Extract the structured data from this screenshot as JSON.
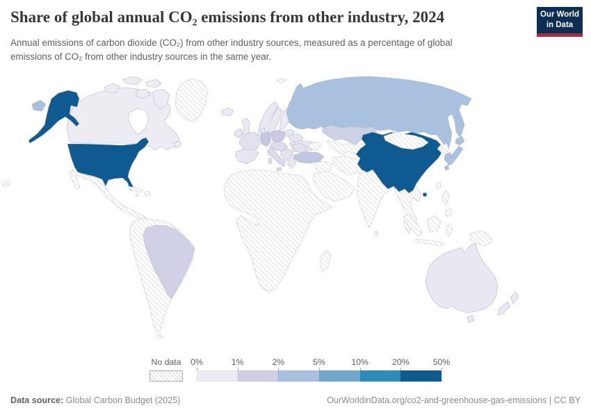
{
  "header": {
    "title": "Share of global annual CO₂ emissions from other industry, 2024",
    "subtitle_line1": "Annual emissions of carbon dioxide (CO₂) from other industry sources, measured as a percentage of global",
    "subtitle_line2": "emissions of CO₂ from other industry sources in the same year.",
    "logo": {
      "line1": "Our World",
      "line2": "in Data",
      "bg": "#0d2e52",
      "accent": "#a52c43"
    }
  },
  "legend": {
    "no_data_label": "No data",
    "ticks": [
      "0%",
      "1%",
      "2%",
      "5%",
      "10%",
      "20%",
      "50%"
    ],
    "bins": [
      "#eceaf3",
      "#cfcee3",
      "#a9c0de",
      "#72a7cd",
      "#2e8bbd",
      "#0e5a91"
    ]
  },
  "footer": {
    "source_label": "Data source:",
    "source_value": " Global Carbon Budget (2025)",
    "note_right": "OurWorldinData.org/co2-and-greenhouse-gas-emissions | CC BY"
  },
  "chart_data": {
    "type": "choropleth-map",
    "title": "Share of global annual CO₂ emissions from other industry, 2024",
    "unit": "%",
    "legend_bins": [
      {
        "range": "0–1%",
        "color": "#eceaf3"
      },
      {
        "range": "1–2%",
        "color": "#cfcee3"
      },
      {
        "range": "2–5%",
        "color": "#a9c0de"
      },
      {
        "range": "5–10%",
        "color": "#72a7cd"
      },
      {
        "range": "10–20%",
        "color": "#2e8bbd"
      },
      {
        "range": "20–50%",
        "color": "#0e5a91"
      }
    ],
    "countries": [
      {
        "name": "United States",
        "bin": "20–50%"
      },
      {
        "name": "China",
        "bin": "20–50%"
      },
      {
        "name": "Russia",
        "bin": "2–5%"
      },
      {
        "name": "Japan",
        "bin": "2–5%"
      },
      {
        "name": "South Korea",
        "bin": "2–5%"
      },
      {
        "name": "Turkey",
        "bin": "1–2%"
      },
      {
        "name": "Kazakhstan",
        "bin": "1–2%"
      },
      {
        "name": "Germany",
        "bin": "1–2%"
      },
      {
        "name": "Poland",
        "bin": "1–2%"
      },
      {
        "name": "Brazil",
        "bin": "1–2%"
      },
      {
        "name": "Canada",
        "bin": "0–1%"
      },
      {
        "name": "Australia",
        "bin": "0–1%"
      },
      {
        "name": "New Zealand",
        "bin": "0–1%"
      },
      {
        "name": "Iceland",
        "bin": "0–1%"
      },
      {
        "name": "Most of Europe (UK, France, Spain, Italy, Nordics, Ukraine, Balkans)",
        "bin": "0–1%"
      },
      {
        "name": "Africa, Middle East, India, Southeast Asia, Mongolia, Mexico, Central America, South America except Brazil, Greenland",
        "bin": "No data"
      }
    ]
  },
  "map": {
    "no_data_fill": "hatch",
    "countries": {
      "united-states": "#0e5a91",
      "canada": "#eeecf3",
      "chukotka-russia": "#a9c0de",
      "greenland": "no-data",
      "hawaii": "no-data",
      "mexico-central-america": "no-data",
      "caribbean": "no-data",
      "south-america": "no-data",
      "brazil": "#d0d1e6",
      "iceland": "#eceaf3",
      "united-kingdom": "#eae8f2",
      "ireland": "#e8e6f1",
      "norway": "#eae8f2",
      "sweden": "#e9e7f1",
      "finland": "#eceaf3",
      "denmark": "#e8e6f1",
      "baltics": "#e8e6f1",
      "belarus": "#e8e6f1",
      "ukraine": "#e7e5f0",
      "poland": "#c9c9e1",
      "germany": "#c7c7e0",
      "france": "#e3e1ed",
      "spain": "#e7e5f0",
      "central-europe": "#dddbe9",
      "italy": "#dcdae8",
      "balkans": "#e4e2ee",
      "romania-bulgaria": "#e2e0ec",
      "greece": "#e9e7f1",
      "turkey": "#bfc8e2",
      "russia": "#a9c0de",
      "novaya-zemlya-russia": "#a9c0de",
      "sakhalin-russia": "#a9c0de",
      "svalbard": "no-data",
      "kazakhstan": "#cdd1e5",
      "central-asia": "no-data",
      "caucasus": "no-data",
      "middle-east": "no-data",
      "arabia": "no-data",
      "iran": "no-data",
      "afghanistan-pakistan": "no-data",
      "africa": "no-data",
      "madagascar": "no-data",
      "india": "no-data",
      "sri-lanka": "no-data",
      "indochina": "no-data",
      "china": "#0e5a91",
      "mongolia": "no-data",
      "north-korea": "no-data",
      "south-korea": "#a9c0de",
      "japan": "#a9c0de",
      "taiwan": "no-data",
      "philippines": "no-data",
      "indonesia": "no-data",
      "new-guinea": "no-data",
      "australia": "#e9e7f1",
      "tasmania": "#e9e7f1",
      "new-zealand": "#eae8f2"
    }
  }
}
